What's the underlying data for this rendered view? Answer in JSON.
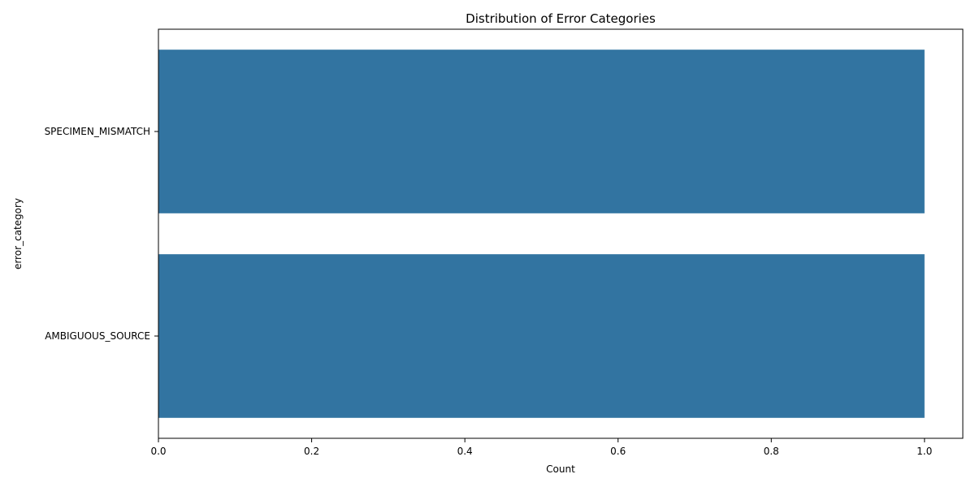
{
  "chart_data": {
    "type": "bar",
    "orientation": "horizontal",
    "title": "Distribution of Error Categories",
    "xlabel": "Count",
    "ylabel": "error_category",
    "categories": [
      "SPECIMEN_MISMATCH",
      "AMBIGUOUS_SOURCE"
    ],
    "values": [
      1,
      1
    ],
    "xlim": [
      0,
      1.05
    ],
    "xticks": [
      0.0,
      0.2,
      0.4,
      0.6,
      0.8,
      1.0
    ],
    "xtick_labels": [
      "0.0",
      "0.2",
      "0.4",
      "0.6",
      "0.8",
      "1.0"
    ],
    "bar_color": "#3274a1",
    "grid": false,
    "legend": "none"
  }
}
